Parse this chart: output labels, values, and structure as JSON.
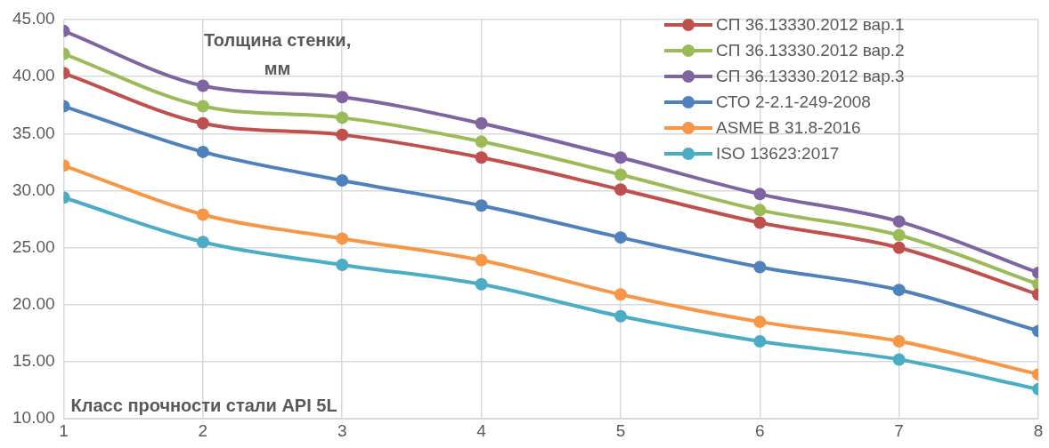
{
  "chart_data": {
    "type": "line",
    "xlabel": "Класс прочности стали API 5L",
    "ylabel": "Толщина стенки, мм",
    "x": [
      1,
      2,
      3,
      4,
      5,
      6,
      7,
      8
    ],
    "series": [
      {
        "name": "СП 36.13330.2012 вар.1",
        "color": "#c0504d",
        "values": [
          40.3,
          35.9,
          34.9,
          32.9,
          30.1,
          27.2,
          25.0,
          20.9
        ]
      },
      {
        "name": "СП 36.13330.2012 вар.2",
        "color": "#9bbb59",
        "values": [
          42.0,
          37.4,
          36.4,
          34.3,
          31.4,
          28.3,
          26.1,
          21.8
        ]
      },
      {
        "name": "СП 36.13330.2012 вар.3",
        "color": "#8064a2",
        "values": [
          44.0,
          39.2,
          38.2,
          35.9,
          32.9,
          29.7,
          27.3,
          22.8
        ]
      },
      {
        "name": "СТО 2-2.1-249-2008",
        "color": "#4f81bd",
        "values": [
          37.4,
          33.4,
          30.9,
          28.7,
          25.9,
          23.3,
          21.3,
          17.7
        ]
      },
      {
        "name": "ASME B 31.8-2016",
        "color": "#f79646",
        "values": [
          32.2,
          27.9,
          25.8,
          23.9,
          20.9,
          18.5,
          16.8,
          13.9
        ]
      },
      {
        "name": "ISO 13623:2017",
        "color": "#4bacc6",
        "values": [
          29.4,
          25.5,
          23.5,
          21.8,
          19.0,
          16.8,
          15.2,
          12.6
        ]
      }
    ],
    "xlim": [
      1,
      8
    ],
    "xticks": [
      1,
      2,
      3,
      4,
      5,
      6,
      7,
      8
    ],
    "ylim": [
      10,
      45
    ],
    "yticks": [
      {
        "value": 10,
        "label": "10.00"
      },
      {
        "value": 15,
        "label": "15.00"
      },
      {
        "value": 20,
        "label": "20.00"
      },
      {
        "value": 25,
        "label": "25.00"
      },
      {
        "value": 30,
        "label": "30.00"
      },
      {
        "value": 35,
        "label": "35.00"
      },
      {
        "value": 40,
        "label": "40.00"
      },
      {
        "value": 45,
        "label": "45.00"
      }
    ],
    "grid": true,
    "legend": "top right",
    "marker": "circle",
    "line_style": "solid"
  }
}
